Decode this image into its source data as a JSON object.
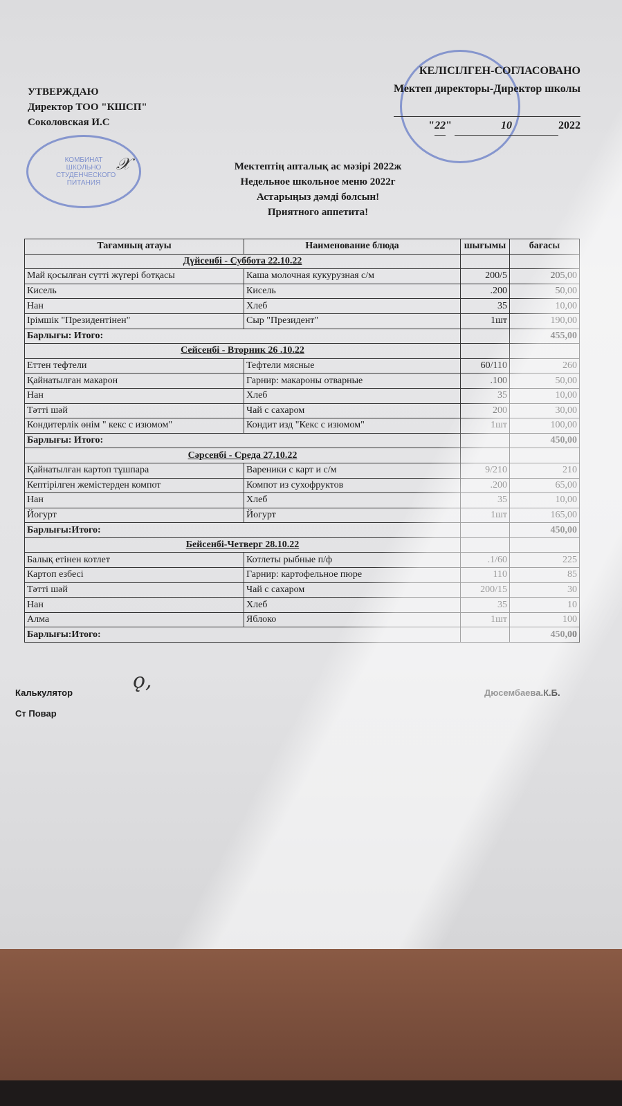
{
  "approve_block": {
    "line1": "УТВЕРЖДАЮ",
    "line2": "Директор ТОО \"КШСП\"",
    "line3": "Соколовская И.С"
  },
  "agree_block": {
    "line1": "КЕЛІСІЛГЕН-СОГЛАСОВАНО",
    "line2": "Мектеп директоры-Директор школы",
    "date_day": "22",
    "date_month": "10",
    "date_year": "2022"
  },
  "stamp_left_text": "КОМБИНАТ ШКОЛЬНО СТУДЕНЧЕСКОГО ПИТАНИЯ",
  "titles": [
    "Мектептің апталық ас мәзірі 2022ж",
    "Недельное школьное меню 2022г",
    "Астарыңыз дәмді болсын!",
    "Приятного аппетита!"
  ],
  "table": {
    "headers": [
      "Тағамның атауы",
      "Наименование блюда",
      "шығымы",
      "бағасы"
    ],
    "sections": [
      {
        "day": "Дүйсенбі - Суббота  22.10.22",
        "items": [
          [
            "Май қосылған сүтті жүгері ботқасы",
            "Каша молочная кукурузная  с/м",
            "200/5",
            "205,00"
          ],
          [
            "Кисель",
            "Кисель",
            ".200",
            "50,00"
          ],
          [
            "Нан",
            "Хлеб",
            "35",
            "10,00"
          ],
          [
            "Ірімшік \"Президентінен\"",
            "Сыр \"Президент\"",
            "1шт",
            "190,00"
          ]
        ],
        "total_label": "Барлығы: Итого:",
        "total": "455,00"
      },
      {
        "day": "Сейсенбі - Вторник 26 .10.22",
        "items": [
          [
            "Еттен тефтели",
            "Тефтели мясные",
            "60/110",
            "260"
          ],
          [
            "Қайнатылған макарон",
            "Гарнир: макароны отварные",
            ".100",
            "50,00"
          ],
          [
            "Нан",
            "Хлеб",
            "35",
            "10,00"
          ],
          [
            "Тәтті шәй",
            "Чай с сахаром",
            "200",
            "30,00"
          ],
          [
            "Кондитерлік өнім \" кекс с изюмом\"",
            "Кондит изд \"Кекс с изюмом\"",
            "1шт",
            "100,00"
          ]
        ],
        "total_label": "Барлығы: Итого:",
        "total": "450,00"
      },
      {
        "day": "Сәрсенбі - Среда  27.10.22",
        "items": [
          [
            "Қайнатылған картоп тұшпара",
            "Вареники с карт и с/м",
            "9/210",
            "210"
          ],
          [
            "Кептірілген жемістерден компот",
            "Компот из сухофруктов",
            ".200",
            "65,00"
          ],
          [
            "Нан",
            "Хлеб",
            "35",
            "10,00"
          ],
          [
            "Йогурт",
            "Йогурт",
            "1шт",
            "165,00"
          ]
        ],
        "total_label": "Барлығы:Итого:",
        "total": "450,00"
      },
      {
        "day": "Бейсенбі-Четверг 28.10.22",
        "items": [
          [
            "Балық етінен котлет",
            "Котлеты рыбные п/ф",
            ".1/60",
            "225"
          ],
          [
            "Картоп езбесі",
            "Гарнир: картофельное пюре",
            "110",
            "85"
          ],
          [
            "Тәтті шәй",
            "Чай с сахаром",
            "200/15",
            "30"
          ],
          [
            "Нан",
            "Хлеб",
            "35",
            "10"
          ],
          [
            "Алма",
            "Яблоко",
            "1шт",
            "100"
          ]
        ],
        "total_label": "Барлығы:Итого:",
        "total": "450,00"
      }
    ]
  },
  "footer": {
    "calculator_label": "Калькулятор",
    "calculator_name": "Дюсембаева.К.Б.",
    "cook_label": "Ст Повар"
  }
}
